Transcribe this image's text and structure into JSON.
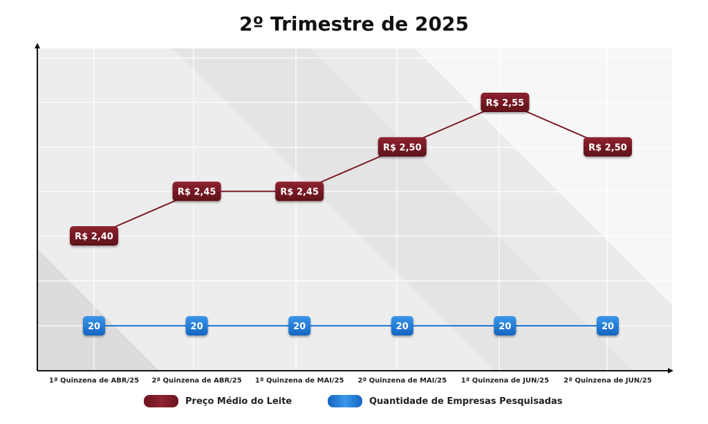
{
  "chart_data": {
    "type": "line",
    "title": "2º Trimestre de 2025",
    "xlabel": "",
    "ylabel": "",
    "categories": [
      "1ª Quinzena de ABR/25",
      "2ª Quinzena de ABR/25",
      "1ª Quinzena de MAI/25",
      "2ª Quinzena de MAI/25",
      "1ª Quinzena de JUN/25",
      "2ª Quinzena de JUN/25"
    ],
    "series": [
      {
        "name": "Preço Médio do Leite",
        "values": [
          2.4,
          2.45,
          2.45,
          2.5,
          2.55,
          2.5
        ],
        "labels": [
          "R$ 2,40",
          "R$ 2,45",
          "R$ 2,45",
          "R$ 2,50",
          "R$ 2,55",
          "R$ 2,50"
        ],
        "color": "#7b1a24"
      },
      {
        "name": "Quantidade de Empresas Pesquisadas",
        "values": [
          20,
          20,
          20,
          20,
          20,
          20
        ],
        "labels": [
          "20",
          "20",
          "20",
          "20",
          "20",
          "20"
        ],
        "color": "#1f78d1"
      }
    ],
    "grid": true,
    "legend_position": "bottom"
  }
}
